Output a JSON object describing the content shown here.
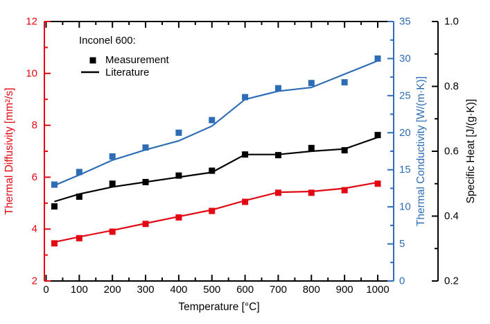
{
  "figure": {
    "background": "#ffffff",
    "legend": {
      "title": "Inconel 600:",
      "items": [
        {
          "label": "Measurement",
          "sample": "square-marker"
        },
        {
          "label": "Literature",
          "sample": "line"
        }
      ]
    },
    "axes": {
      "x": {
        "label": "Temperature [°C]",
        "color": "#000000",
        "tick_labels": [
          "0",
          "100",
          "200",
          "300",
          "400",
          "500",
          "600",
          "700",
          "800",
          "900",
          "1000"
        ],
        "minor_step": 50
      },
      "y_left": {
        "label": "Thermal Diffusivity [mm²/s]",
        "color": "#e30613",
        "min": 2,
        "max": 12,
        "tick_labels": [
          "2",
          "4",
          "6",
          "8",
          "10",
          "12"
        ],
        "minor_step": 1
      },
      "y_right_conductivity": {
        "label": "Thermal Conductivity [W/(m·K)]",
        "color": "#2e6db5",
        "min": 0,
        "max": 35,
        "tick_labels": [
          "0",
          "5",
          "10",
          "15",
          "20",
          "25",
          "30",
          "35"
        ],
        "minor_step": 2.5
      },
      "y_right_specific_heat": {
        "label": "Specific Heat [J/(g·K)]",
        "color": "#000000",
        "min": 0.2,
        "max": 1.0,
        "tick_labels": [
          "0.2",
          "0.4",
          "0.6",
          "0.8",
          "1.0"
        ],
        "minor_step": 0.1
      }
    }
  },
  "chart_data": {
    "type": "scatter+line",
    "title": "",
    "legend_title": "Inconel 600:",
    "legend_entries": [
      "Measurement",
      "Literature"
    ],
    "xlabel": "Temperature [°C]",
    "x": [
      25,
      100,
      200,
      300,
      400,
      500,
      600,
      700,
      800,
      900,
      1000
    ],
    "series": [
      {
        "name": "Thermal diffusivity - measurement",
        "axis": "y_left",
        "unit": "mm²/s",
        "style": "markers",
        "color": "#e30613",
        "values": [
          3.45,
          3.65,
          3.9,
          4.2,
          4.45,
          4.7,
          5.05,
          5.4,
          5.4,
          5.5,
          5.75
        ]
      },
      {
        "name": "Thermal diffusivity - literature",
        "axis": "y_left",
        "unit": "mm²/s",
        "style": "line",
        "color": "#e30613",
        "values": [
          3.5,
          3.7,
          3.95,
          4.22,
          4.48,
          4.74,
          5.1,
          5.42,
          5.45,
          5.57,
          5.8
        ]
      },
      {
        "name": "Specific heat - measurement",
        "axis": "y_right_specific_heat",
        "unit": "J/(g·K)",
        "style": "markers",
        "color": "#000000",
        "values": [
          0.43,
          0.46,
          0.5,
          0.505,
          0.525,
          0.54,
          0.59,
          0.588,
          0.61,
          0.603,
          0.65
        ]
      },
      {
        "name": "Specific heat - literature",
        "axis": "y_right_specific_heat",
        "unit": "J/(g·K)",
        "style": "line",
        "color": "#000000",
        "values": [
          0.445,
          0.468,
          0.49,
          0.505,
          0.52,
          0.535,
          0.59,
          0.59,
          0.6,
          0.607,
          0.643
        ]
      },
      {
        "name": "Thermal conductivity - measurement",
        "axis": "y_right_conductivity",
        "unit": "W/(m·K)",
        "style": "markers",
        "color": "#2e6db5",
        "values": [
          13.0,
          14.7,
          16.8,
          18.0,
          20.0,
          21.7,
          24.8,
          26.0,
          26.7,
          26.8,
          30.0
        ]
      },
      {
        "name": "Thermal conductivity - literature",
        "axis": "y_right_conductivity",
        "unit": "W/(m·K)",
        "style": "line",
        "color": "#2e6db5",
        "values": [
          12.9,
          14.3,
          16.3,
          17.7,
          18.9,
          20.9,
          24.5,
          25.6,
          26.1,
          27.9,
          29.7
        ]
      }
    ]
  }
}
